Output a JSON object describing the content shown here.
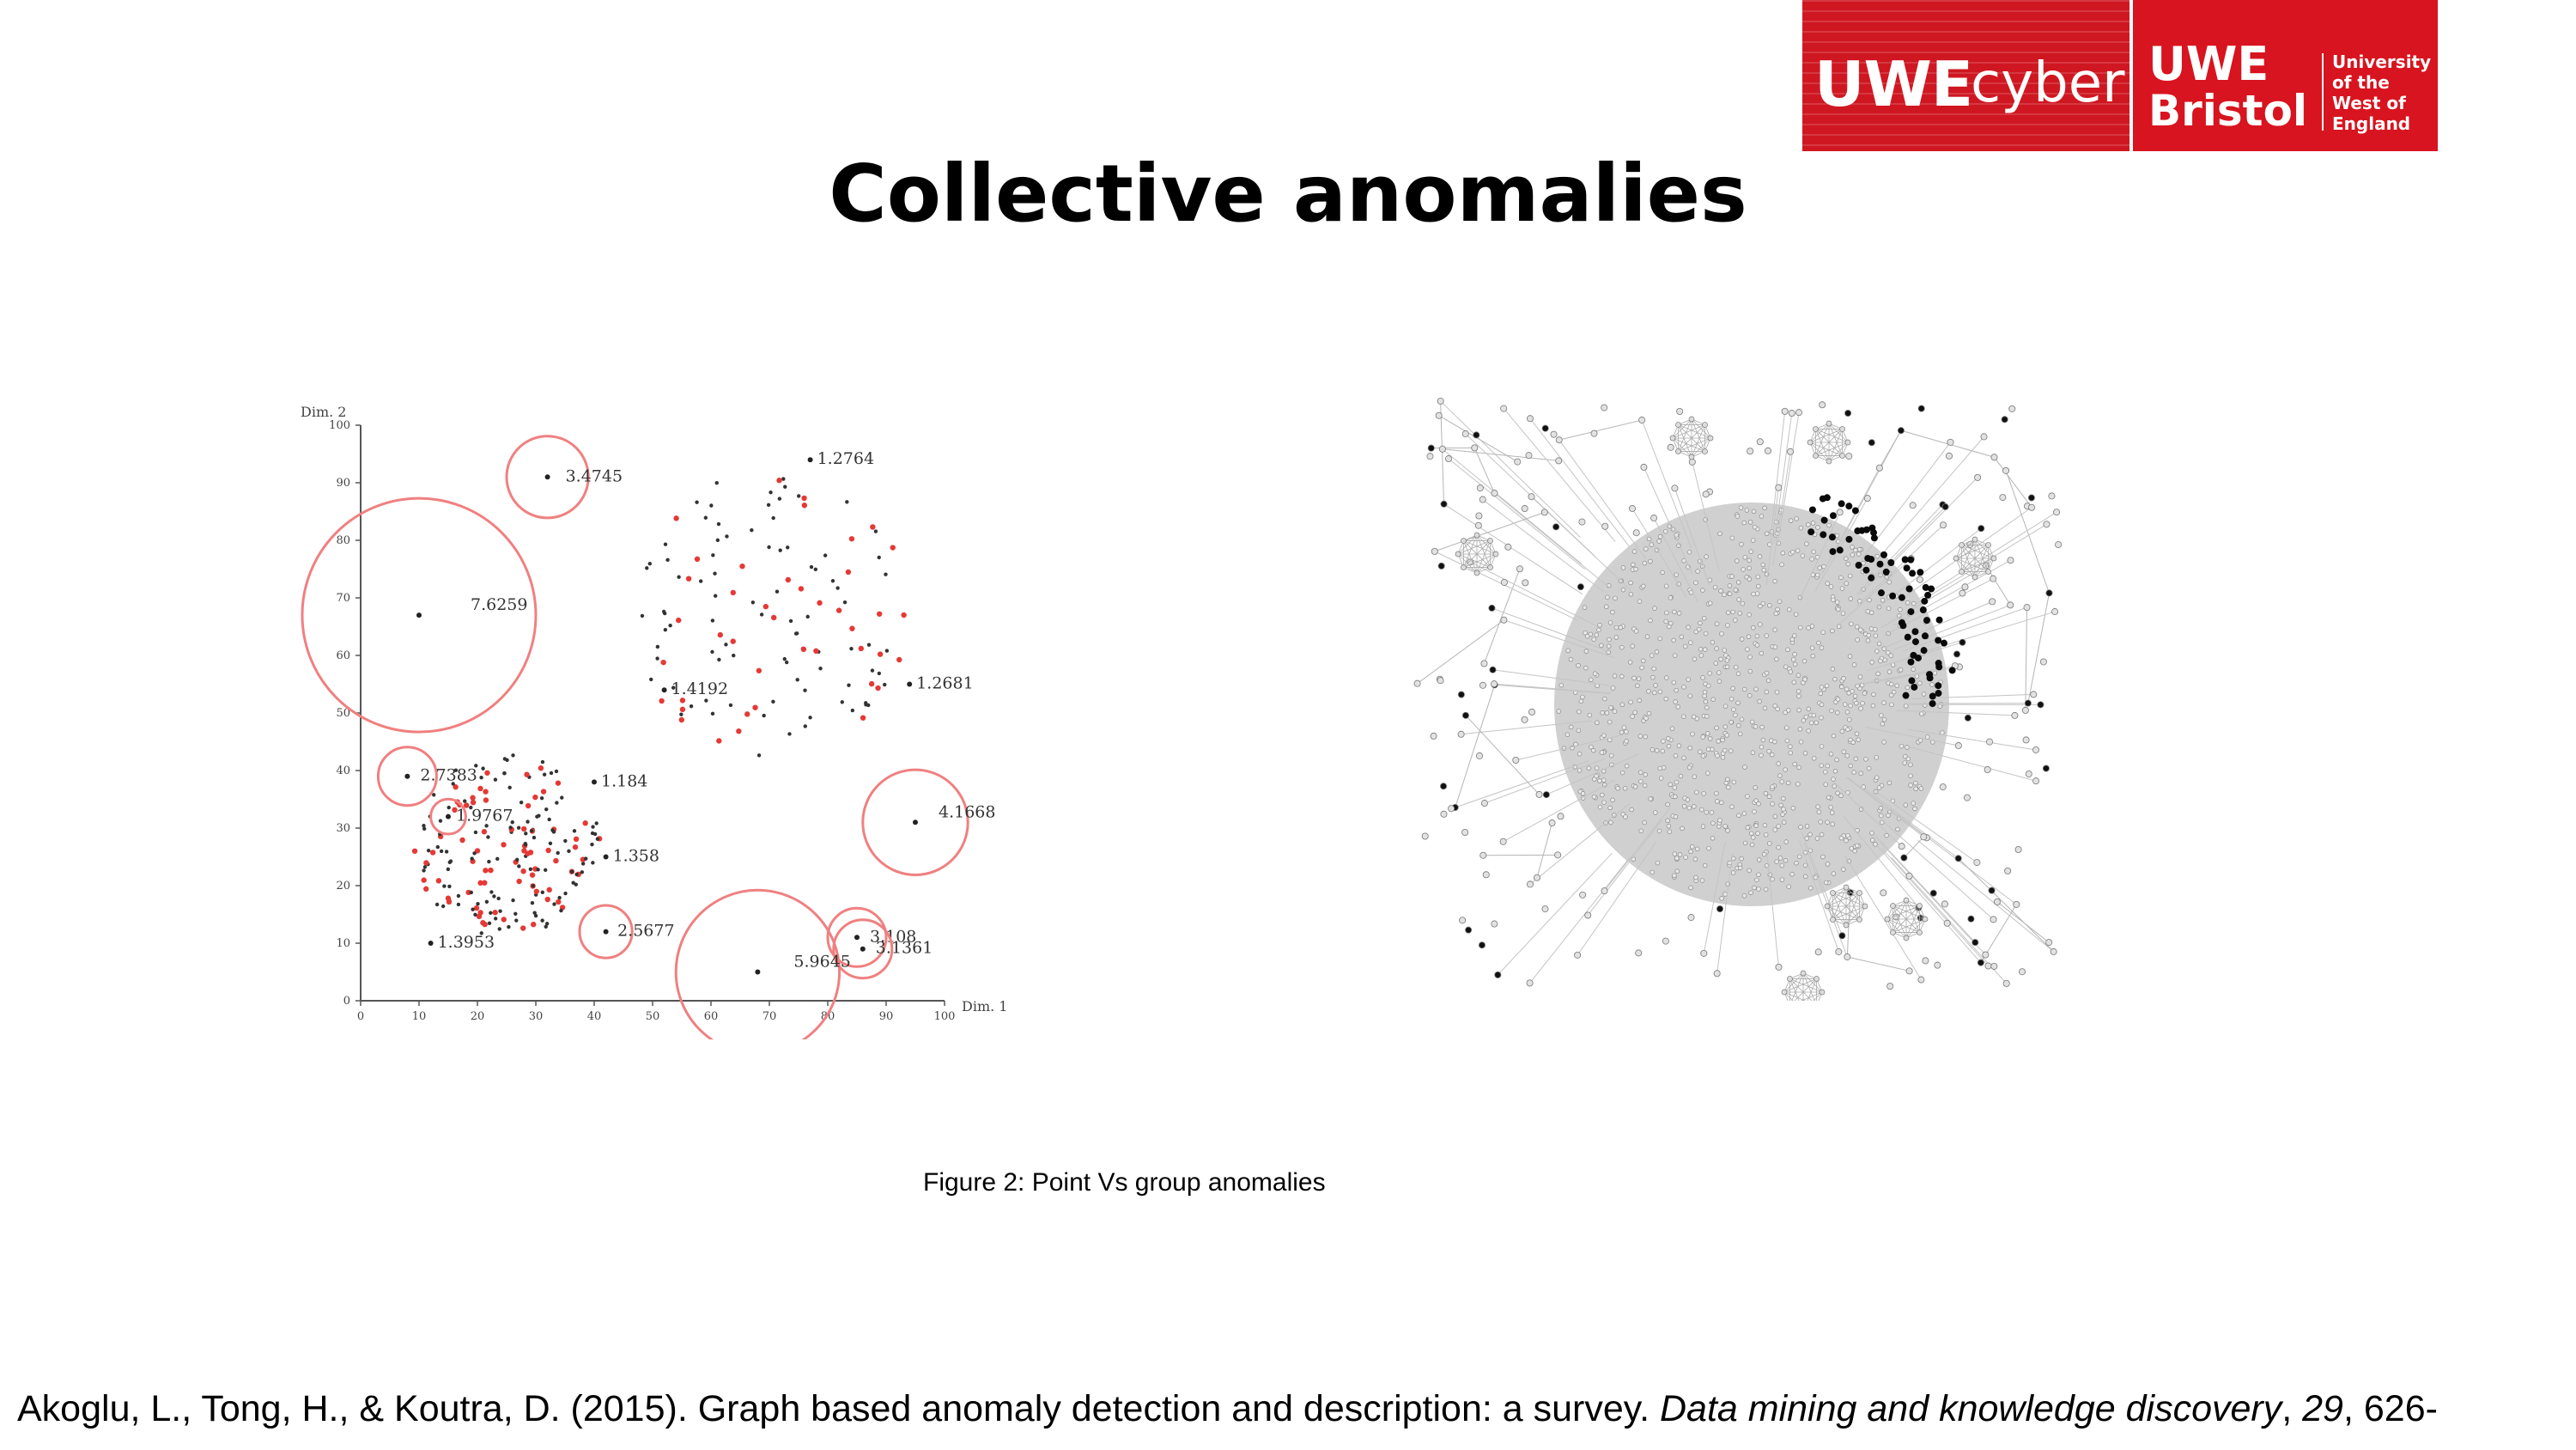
{
  "logo": {
    "cyber_uwe": "UWE",
    "cyber_word": "cyber",
    "bristol_uwe": "UWE",
    "bristol_word": "Bristol",
    "university_lines": [
      "University",
      "of the",
      "West of",
      "England"
    ],
    "brand_color": "#d7141f"
  },
  "slide": {
    "title": "Collective anomalies",
    "caption": "Figure 2: Point Vs group anomalies",
    "reference": {
      "authors": "Akoglu, L., Tong, H., & Koutra, D. (2015). Graph based anomaly detection and description: a survey. ",
      "journal": "Data mining and knowledge discovery",
      "sep1": ", ",
      "volume": "29",
      "sep2": ", 626-"
    }
  },
  "chart_data": {
    "type": "scatter",
    "xlabel": "Dim. 1",
    "ylabel": "Dim. 2",
    "xlim": [
      0,
      100
    ],
    "ylim": [
      0,
      100
    ],
    "xticks": [
      0,
      10,
      20,
      30,
      40,
      50,
      60,
      70,
      80,
      90,
      100
    ],
    "yticks": [
      0,
      10,
      20,
      30,
      40,
      50,
      60,
      70,
      80,
      90,
      100
    ],
    "annotations": [
      {
        "label": "3.4745",
        "x": 32,
        "y": 91
      },
      {
        "label": "1.2764",
        "x": 77,
        "y": 94
      },
      {
        "label": "7.6259",
        "x": 10,
        "y": 67
      },
      {
        "label": "1.2681",
        "x": 94,
        "y": 55
      },
      {
        "label": "1.4192",
        "x": 52,
        "y": 54
      },
      {
        "label": "2.7383",
        "x": 8,
        "y": 39
      },
      {
        "label": "1.184",
        "x": 40,
        "y": 38
      },
      {
        "label": "1.9767",
        "x": 15,
        "y": 32
      },
      {
        "label": "4.1668",
        "x": 95,
        "y": 31
      },
      {
        "label": "1.358",
        "x": 42,
        "y": 25
      },
      {
        "label": "2.5677",
        "x": 42,
        "y": 12
      },
      {
        "label": "1.3953",
        "x": 12,
        "y": 10
      },
      {
        "label": "3.108",
        "x": 85,
        "y": 11
      },
      {
        "label": "3.1361",
        "x": 86,
        "y": 9
      },
      {
        "label": "5.9645",
        "x": 68,
        "y": 5
      }
    ]
  }
}
